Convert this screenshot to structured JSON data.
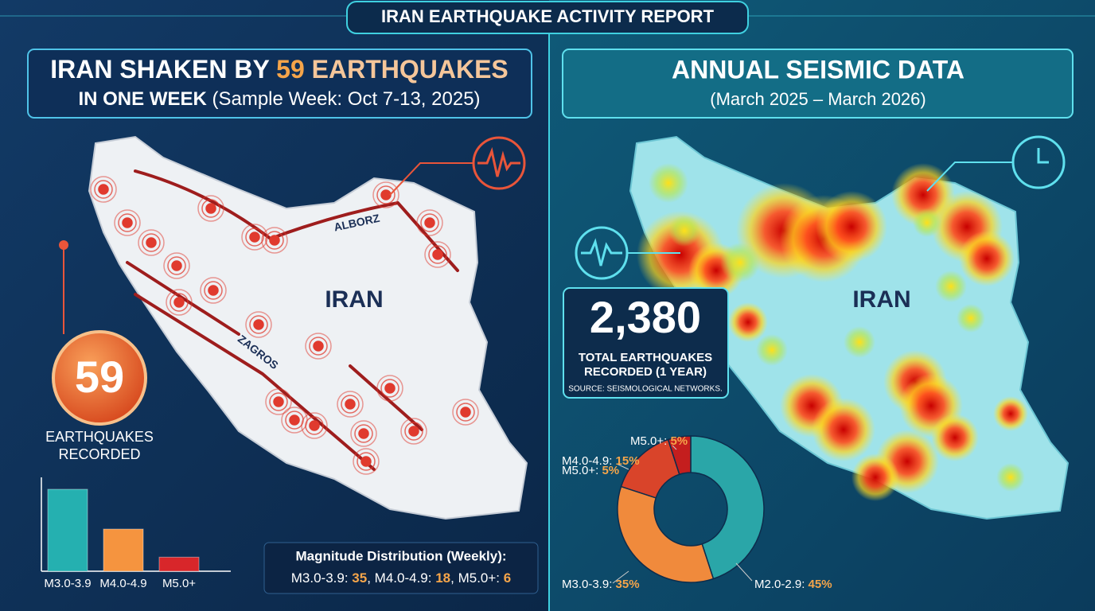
{
  "header": {
    "title": "IRAN EARTHQUAKE ACTIVITY REPORT"
  },
  "left": {
    "title_line1": [
      "IRAN SHAKEN BY",
      "59",
      "EARTHQUAKES"
    ],
    "title_line2": [
      "IN ONE WEEK",
      "(Sample Week: Oct 7-13, 2025)"
    ],
    "map_labels": [
      "ALBORZ",
      "ZAGROS",
      "IRAN"
    ],
    "count": "59",
    "count_label": [
      "EARTHQUAKES",
      "RECORDED"
    ],
    "distribution_title": "Magnitude Distribution (Weekly):",
    "distribution_labels": [
      "M3.0-3.9:",
      ", M4.0-4.9:",
      ", M5.0+:"
    ]
  },
  "right": {
    "title": "ANNUAL SEISMIC DATA",
    "subtitle": "(March 2025 – March 2026)",
    "map_label": "IRAN",
    "total": "2,380",
    "total_label": [
      "TOTAL EARTHQUAKES",
      "RECORDED (1 YEAR)"
    ],
    "source": "SOURCE: SEISMOLOGICAL NETWORKS."
  },
  "chart_data": [
    {
      "type": "bar",
      "categories": [
        "M3.0-3.9",
        "M4.0-4.9",
        "M5.0+"
      ],
      "values": [
        35,
        18,
        6
      ],
      "colors": [
        "#25b0b0",
        "#f5943f",
        "#d8262a"
      ]
    },
    {
      "type": "donut",
      "categories": [
        "M2.0-2.9:",
        "M3.0-3.9:",
        "M4.0-4.9:",
        "M5.0+:"
      ],
      "values": [
        45,
        35,
        15,
        5
      ],
      "value_labels": [
        "45%",
        "35%",
        "15%",
        "5%"
      ],
      "colors": [
        "#2aa6a8",
        "#f08a3c",
        "#d9442a",
        "#c41e1e"
      ],
      "annotations": [
        {
          "text": "M5.0+:",
          "label": "5%"
        }
      ]
    }
  ]
}
